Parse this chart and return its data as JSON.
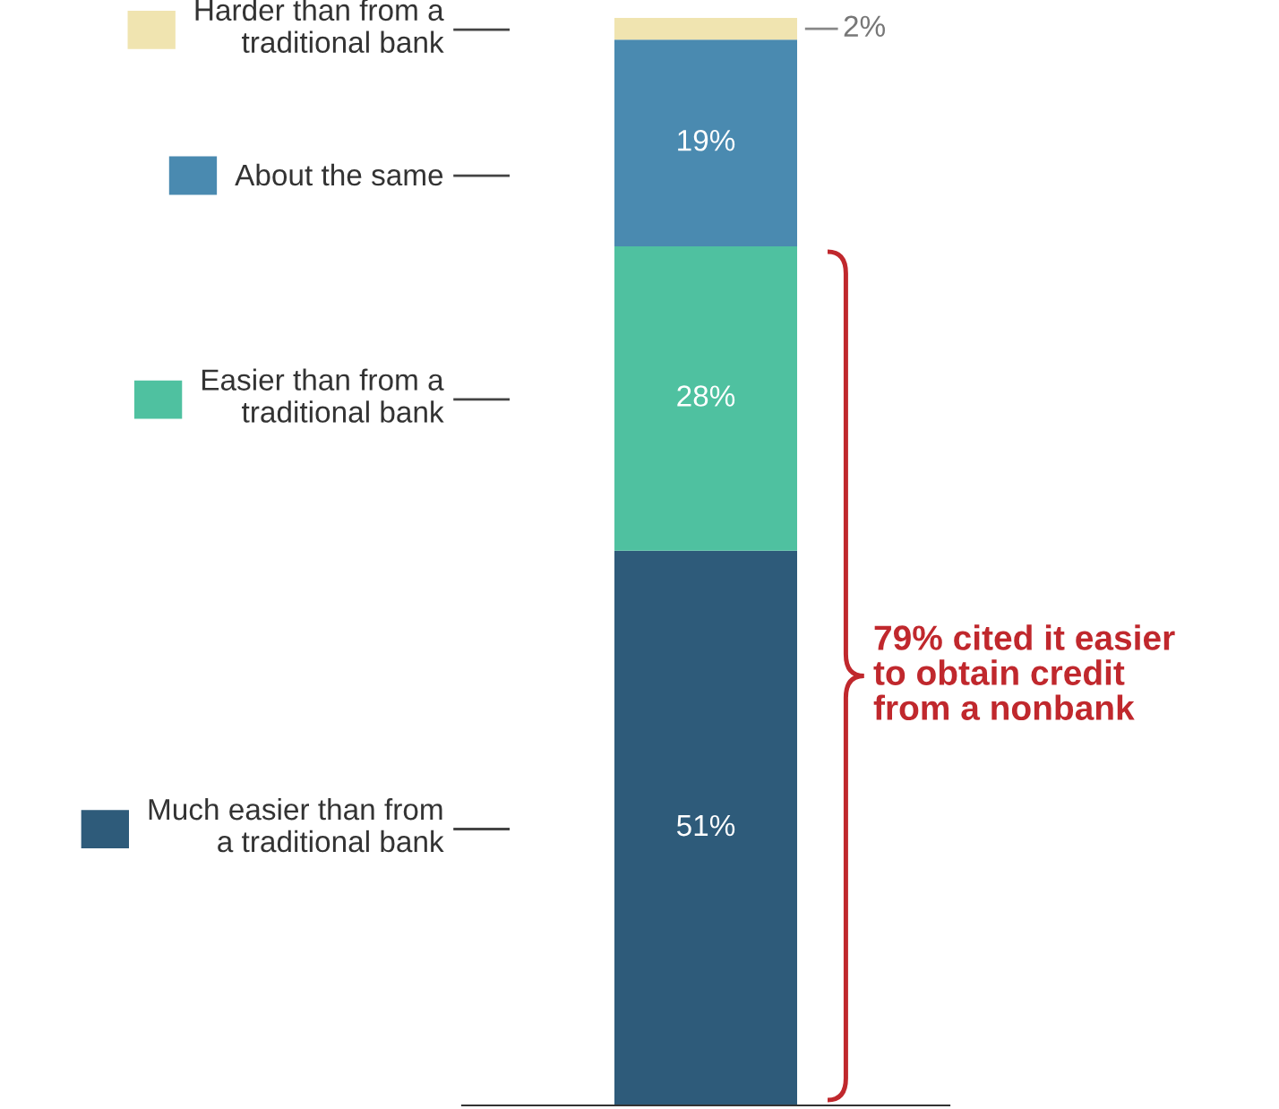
{
  "chart_data": {
    "type": "bar",
    "stacked": true,
    "categories": [
      null
    ],
    "ylim": [
      0,
      100
    ],
    "tick_labels": false,
    "legend": "left",
    "grid": false,
    "series": [
      {
        "name": "Much easier than from\na traditional bank",
        "color": "#2e5b7a",
        "values": [
          51
        ],
        "value_labels": [
          "51%"
        ]
      },
      {
        "name": "Easier than from a\ntraditional bank",
        "color": "#4fc1a0",
        "values": [
          28
        ],
        "value_labels": [
          "28%"
        ]
      },
      {
        "name": "About the same",
        "color": "#4a8ab0",
        "values": [
          19
        ],
        "value_labels": [
          "19%"
        ]
      },
      {
        "name": "Harder than from a\ntraditional bank",
        "color": "#f0e4b0",
        "values": [
          2
        ],
        "value_labels": [
          "2%"
        ]
      }
    ],
    "annotations": [
      "79% cited it easier\nto obtain credit\nfrom a nonbank"
    ]
  }
}
